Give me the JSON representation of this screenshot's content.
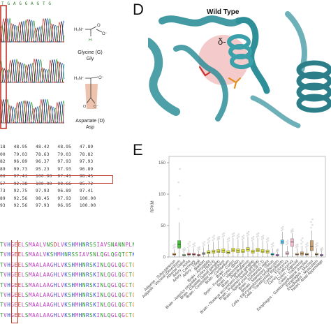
{
  "panel_d": {
    "letter": "D",
    "title": "Wild Type",
    "charge": "δ-"
  },
  "panel_e": {
    "letter": "E"
  },
  "top_sequence": "T G A G G A G T G",
  "molecules": [
    {
      "name": "Glycine (G)",
      "abbr": "Gly"
    },
    {
      "name": "Aspartate (D)",
      "abbr": "Asp"
    }
  ],
  "identity_table": [
    "18   48.95   48.42   48.95   47.89",
    "00   79.03   78.63   79.03   78.82",
    "82   96.89   96.37   97.93   97.93",
    "89   99.73   95.23   97.93   96.89",
    "00   97.41   100.00  97.41   98.45",
    "57   92.38   100.00  99.66   95.72",
    "73   92.75   97.93   96.89   97.41",
    "89   92.56   98.45   97.93   100.00",
    "93   92.56   97.93   96.95   100.00"
  ],
  "sequences": [
    "TVHGEELSMAALVNSDLVKSHMHNRSSIAVSNANNPLNV",
    "TVHGEELSMAALVKSHMHNRSSIAVSNLQGLQGQTCTK",
    "TVHGEELSMAALAAGHLVKSHMHNRSKINLQGLQGCTCTK",
    "TVHGEELSMAALAAGHLVKSHMHNRSKINLQGLQGCTCTK",
    "TVHGEELSMAALAAGHLVKSHMHNRSKINLQGLQGCTCTK",
    "TVHGEELSMAALAAGHLVKSHMHNRSKINLQGLQGCTCTK",
    "TVHGEELSMAALAAGHLVKSHMHNRSKINLQGLQGCTCTK",
    "TVHGEELSMAALAAGHLVKSHMHNRSKINLQGLQGCTCTK"
  ],
  "colors": {
    "highlight_red": "#c0392b",
    "protein_teal": "#2f8f99",
    "charge_pink": "#f2b8b8",
    "residue_orange": "#e3901f",
    "residue_red": "#cc3333"
  },
  "chart_data": {
    "type": "box",
    "ylabel": "RPKM",
    "yticks": [
      0,
      50,
      100,
      150
    ],
    "ylim": [
      0,
      160
    ],
    "categories": [
      "Adipose - Subcutaneous",
      "Adipose - Visceral (Omentum)",
      "Adrenal Gland",
      "Artery - Aorta",
      "Artery - Coronary",
      "Artery - Tibial",
      "Bladder",
      "Brain - Amygdala",
      "Brain - Anterior cingulate cortex (BA24)",
      "Brain - Caudate (basal ganglia)",
      "Brain - Cerebellar Hemisphere",
      "Brain - Cerebellum",
      "Brain - Cortex",
      "Brain - Frontal Cortex (BA9)",
      "Brain - Hippocampus",
      "Brain - Hypothalamus",
      "Brain - Nucleus accumbens (basal ganglia)",
      "Brain - Putamen (basal ganglia)",
      "Brain - Spinal cord (cervical c-1)",
      "Brain - Substantia nigra",
      "Breast - Mammary Tissue",
      "Cells - EBV-transformed lymphocytes",
      "Cells - Transformed fibroblasts",
      "Cervix - Ectocervix",
      "Cervix - Endocervix",
      "Colon - Sigmoid",
      "Colon - Transverse",
      "Esophagus - Gastroesophageal Junction",
      "Esophagus - Mucosa",
      "Esophagus - Muscularis",
      "Heart - Atrial Appendage"
    ],
    "medians": [
      4,
      20,
      3,
      4,
      4,
      3,
      5,
      7,
      8,
      9,
      10,
      7,
      11,
      10,
      9,
      12,
      8,
      11,
      9,
      8,
      4,
      3,
      24,
      6,
      24,
      4,
      5,
      4,
      17,
      4,
      3
    ],
    "q1": [
      3,
      14,
      2,
      3,
      3,
      2,
      4,
      5,
      6,
      7,
      7,
      5,
      8,
      7,
      7,
      9,
      6,
      8,
      7,
      6,
      3,
      2,
      21,
      4,
      17,
      3,
      3,
      3,
      10,
      3,
      2
    ],
    "q3": [
      6,
      26,
      4,
      6,
      6,
      4,
      7,
      10,
      11,
      12,
      13,
      10,
      14,
      13,
      12,
      15,
      11,
      14,
      12,
      11,
      6,
      4,
      27,
      8,
      29,
      6,
      8,
      6,
      26,
      6,
      4
    ],
    "whisker_high": [
      12,
      55,
      8,
      12,
      14,
      9,
      15,
      20,
      24,
      26,
      30,
      22,
      30,
      28,
      26,
      32,
      24,
      30,
      26,
      22,
      14,
      8,
      40,
      18,
      38,
      14,
      18,
      14,
      42,
      14,
      9
    ],
    "max_outlier": [
      20,
      140,
      14,
      24,
      22,
      16,
      24,
      30,
      34,
      32,
      38,
      30,
      38,
      36,
      34,
      40,
      32,
      38,
      34,
      30,
      22,
      12,
      48,
      26,
      44,
      20,
      30,
      22,
      60,
      22,
      14
    ],
    "colors": [
      "#f4a04a",
      "#3ec52f",
      "#8bd46b",
      "#e86a6a",
      "#f08080",
      "#e04040",
      "#b0b0b0",
      "#eef03c",
      "#eef03c",
      "#eef03c",
      "#eef03c",
      "#eef03c",
      "#eef03c",
      "#eef03c",
      "#eef03c",
      "#eef03c",
      "#eef03c",
      "#eef03c",
      "#eef03c",
      "#eef03c",
      "#2ec4c4",
      "#b35cf0",
      "#5ac8f0",
      "#f5b8d0",
      "#f5b8d0",
      "#e8b880",
      "#d9a066",
      "#c8a070",
      "#c8a070",
      "#c8a070",
      "#9b59d0"
    ]
  }
}
